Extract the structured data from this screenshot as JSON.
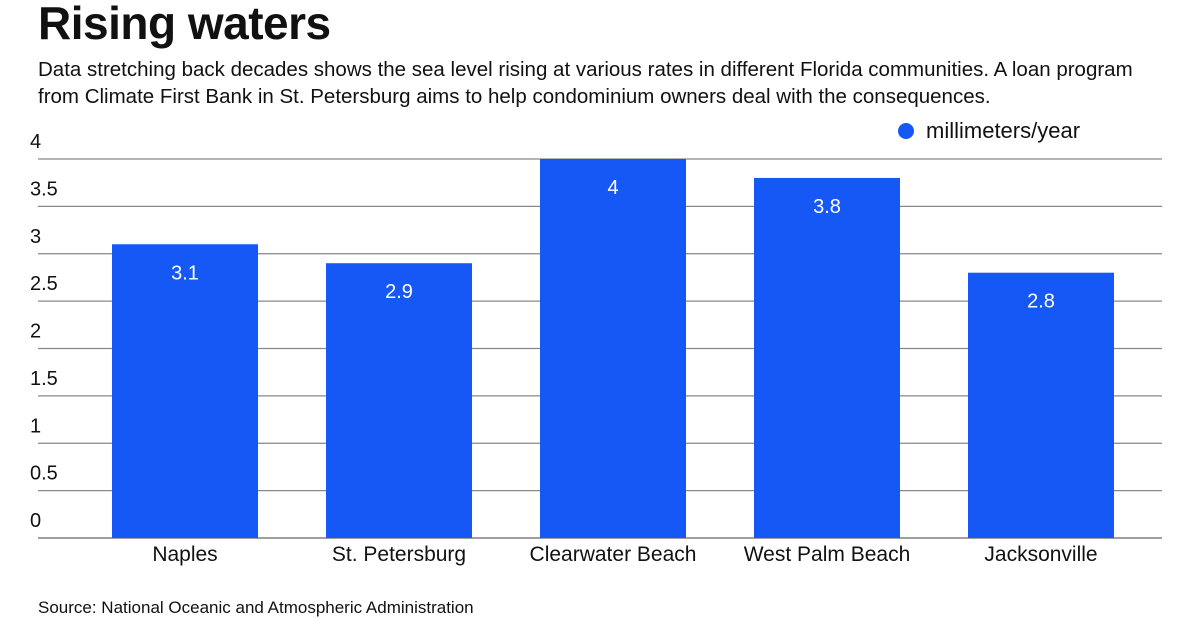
{
  "header": {
    "title": "Rising waters",
    "subtitle": "Data stretching back decades shows the sea level rising at various rates in different Florida communities. A loan program from Climate First Bank in St. Petersburg aims to help condominium owners deal with the consequences."
  },
  "footer": {
    "source": "Source: National Oceanic and Atmospheric Administration"
  },
  "colors": {
    "bar": "#1558f5",
    "grid": "#888888"
  },
  "chart_data": {
    "type": "bar",
    "title": "Rising waters",
    "categories": [
      "Naples",
      "St. Petersburg",
      "Clearwater Beach",
      "West Palm Beach",
      "Jacksonville"
    ],
    "series": [
      {
        "name": "millimeters/year",
        "values": [
          3.1,
          2.9,
          4,
          3.8,
          2.8
        ]
      }
    ],
    "data_labels": [
      "3.1",
      "2.9",
      "4",
      "3.8",
      "2.8"
    ],
    "yticks": [
      0,
      0.5,
      1,
      1.5,
      2,
      2.5,
      3,
      3.5,
      4
    ],
    "ytick_labels": [
      "0",
      "0.5",
      "1",
      "1.5",
      "2",
      "2.5",
      "3",
      "3.5",
      "4"
    ],
    "ylim": [
      0,
      4
    ],
    "xlabel": "",
    "ylabel": "",
    "grid": true,
    "legend_placement": "top-right"
  }
}
